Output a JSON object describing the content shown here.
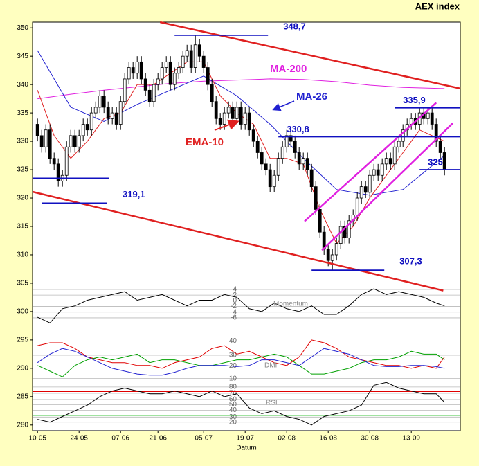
{
  "chart_data": {
    "type": "candlestick",
    "title": "AEX index",
    "xlabel": "Datum",
    "xlim": [
      -1.2,
      101.8
    ],
    "xticks": [
      {
        "value": 0,
        "label": "10-05"
      },
      {
        "value": 10,
        "label": "24-05"
      },
      {
        "value": 20,
        "label": "07-06"
      },
      {
        "value": 29,
        "label": "21-06"
      },
      {
        "value": 40,
        "label": "05-07"
      },
      {
        "value": 50,
        "label": "19-07"
      },
      {
        "value": 60,
        "label": "02-08"
      },
      {
        "value": 70,
        "label": "16-08"
      },
      {
        "value": 80,
        "label": "30-08"
      },
      {
        "value": 90,
        "label": "13-09"
      }
    ],
    "ylim": [
      279,
      351
    ],
    "yticks": [
      280,
      285,
      290,
      295,
      300,
      305,
      310,
      315,
      320,
      325,
      330,
      335,
      340,
      345,
      350
    ],
    "open": [
      333,
      331,
      329,
      332,
      327,
      326,
      323,
      324,
      329,
      331,
      329,
      331,
      333,
      332,
      335,
      336,
      338,
      336,
      334,
      335,
      333,
      337,
      341,
      343,
      342,
      344,
      341,
      339,
      337,
      340,
      341,
      343,
      344,
      340,
      342,
      343,
      345,
      346,
      343,
      347,
      345,
      343,
      340,
      337,
      334,
      333,
      335,
      336,
      334,
      336,
      333,
      335,
      332,
      330,
      328,
      326,
      325,
      322,
      324,
      327,
      329,
      331,
      330,
      328,
      326,
      327,
      325,
      322,
      318,
      314,
      311,
      309,
      310,
      312,
      315,
      313,
      316,
      317,
      320,
      322,
      321,
      324,
      325,
      324,
      326,
      327,
      326,
      329,
      330,
      332,
      333,
      334,
      333,
      335,
      334,
      335,
      333,
      330,
      328
    ],
    "high": [
      334,
      332,
      333,
      333,
      328,
      327,
      325,
      330,
      332,
      332,
      332,
      334,
      334,
      336,
      337,
      339,
      339,
      337,
      336,
      336,
      338,
      342,
      344,
      344,
      345,
      345,
      342,
      340,
      341,
      342,
      344,
      345,
      345,
      343,
      344,
      346,
      347,
      347,
      348.7,
      348,
      346,
      344,
      341,
      338,
      335,
      336,
      337,
      337,
      337,
      337,
      336,
      336,
      333,
      331,
      329,
      327,
      326,
      325,
      328,
      330,
      332,
      332,
      331,
      329,
      328,
      328,
      326,
      323,
      319,
      315,
      312,
      311,
      313,
      316,
      316,
      317,
      318,
      321,
      323,
      323,
      325,
      326,
      326,
      327,
      328,
      328,
      330,
      331,
      333,
      334,
      335,
      335,
      336,
      335.9,
      336,
      336,
      334,
      331,
      329
    ],
    "low": [
      330,
      328,
      328,
      326,
      325,
      322,
      322,
      323,
      328,
      328,
      328,
      330,
      331,
      331,
      334,
      335,
      335,
      333,
      333,
      332,
      332,
      336,
      340,
      341,
      341,
      340,
      338,
      336,
      336,
      339,
      340,
      342,
      339,
      339,
      341,
      342,
      344,
      342,
      342,
      344,
      342,
      339,
      336,
      333,
      332,
      332,
      334,
      333,
      333,
      332,
      332,
      331,
      329,
      327,
      325,
      324,
      321,
      321,
      323,
      326,
      328,
      329,
      327,
      325,
      325,
      324,
      321,
      317,
      313,
      310,
      308,
      307.3,
      309,
      311,
      312,
      312,
      315,
      316,
      319,
      320,
      320,
      323,
      323,
      323,
      325,
      325,
      325,
      328,
      329,
      331,
      332,
      332,
      332,
      333,
      333,
      332,
      329,
      327,
      324
    ],
    "close": [
      331,
      329,
      332,
      327,
      326,
      323,
      324,
      329,
      331,
      329,
      331,
      333,
      332,
      335,
      336,
      338,
      336,
      334,
      335,
      333,
      337,
      341,
      343,
      342,
      344,
      341,
      339,
      337,
      340,
      341,
      343,
      344,
      340,
      342,
      343,
      345,
      346,
      343,
      347,
      345,
      343,
      340,
      337,
      334,
      333,
      335,
      336,
      334,
      336,
      333,
      335,
      332,
      330,
      328,
      326,
      325,
      322,
      324,
      327,
      329,
      331,
      330,
      328,
      326,
      327,
      325,
      322,
      318,
      314,
      311,
      309,
      310,
      312,
      315,
      313,
      316,
      317,
      320,
      322,
      321,
      324,
      325,
      324,
      326,
      327,
      326,
      329,
      330,
      332,
      333,
      334,
      333,
      335,
      334,
      335,
      333,
      330,
      328,
      325
    ],
    "lines": [
      {
        "name": "MA-200",
        "color": "#e020e0",
        "x": [
          0,
          8,
          16,
          24,
          32,
          40,
          48,
          56,
          64,
          72,
          80,
          88,
          98
        ],
        "values": [
          337.5,
          338.3,
          339,
          339.6,
          340.2,
          340.6,
          340.8,
          341,
          340.9,
          340.5,
          339.9,
          339.5,
          339.3
        ]
      },
      {
        "name": "MA-26",
        "color": "#2020d0",
        "x": [
          0,
          8,
          16,
          24,
          32,
          40,
          48,
          56,
          64,
          72,
          80,
          88,
          98
        ],
        "values": [
          346,
          336,
          333.5,
          336.5,
          339,
          341.5,
          338,
          333,
          327,
          321.5,
          320.5,
          321.5,
          327.5
        ]
      },
      {
        "name": "EMA-10",
        "color": "#e02020",
        "x": [
          0,
          4,
          8,
          12,
          16,
          20,
          24,
          28,
          32,
          36,
          40,
          44,
          48,
          52,
          56,
          60,
          64,
          68,
          72,
          76,
          80,
          84,
          88,
          92,
          98
        ],
        "values": [
          339,
          331,
          327,
          330,
          334,
          335,
          340,
          340,
          342,
          344,
          344,
          338,
          335,
          333,
          327,
          327,
          326,
          318,
          312,
          315,
          320,
          324,
          328,
          332,
          330
        ]
      },
      {
        "color": "#000000",
        "x": [
          0,
          3,
          6,
          9,
          12,
          15,
          18,
          21,
          24,
          27,
          30,
          33,
          36,
          39,
          42,
          45,
          48,
          51,
          54,
          57,
          60,
          63,
          66,
          69,
          72,
          75,
          78,
          81,
          84,
          87,
          90,
          93,
          96,
          98
        ],
        "values": [
          299,
          298,
          300.5,
          301,
          302,
          302.5,
          303,
          303.5,
          302,
          302.5,
          303,
          302,
          301,
          302,
          302,
          303,
          302.5,
          300.5,
          300,
          301.5,
          300.5,
          300,
          301,
          299.5,
          299.5,
          301,
          303,
          304,
          303,
          303.5,
          303,
          302.5,
          301.5,
          301
        ]
      },
      {
        "color": "#e00000",
        "x": [
          0,
          3,
          6,
          9,
          12,
          15,
          18,
          21,
          24,
          27,
          30,
          33,
          36,
          39,
          42,
          45,
          48,
          51,
          54,
          57,
          60,
          63,
          66,
          69,
          72,
          75,
          78,
          81,
          84,
          87,
          90,
          93,
          96,
          98
        ],
        "values": [
          294,
          294.5,
          294.5,
          293.5,
          292,
          291.5,
          291,
          291,
          290.5,
          290.5,
          290,
          291,
          291.5,
          292,
          293.5,
          294,
          292.5,
          293,
          292,
          291,
          290.5,
          292,
          295,
          294.5,
          293.5,
          292,
          291.5,
          291,
          290.5,
          290.5,
          290,
          290.5,
          290,
          292
        ]
      },
      {
        "color": "#00a000",
        "x": [
          0,
          3,
          6,
          9,
          12,
          15,
          18,
          21,
          24,
          27,
          30,
          33,
          36,
          39,
          42,
          45,
          48,
          51,
          54,
          57,
          60,
          63,
          66,
          69,
          72,
          75,
          78,
          81,
          84,
          87,
          90,
          93,
          96,
          98
        ],
        "values": [
          290.5,
          289.5,
          288.5,
          290.5,
          291.5,
          292,
          291.5,
          292,
          292.5,
          291,
          291.5,
          291.5,
          291,
          290.5,
          290.5,
          291,
          291.5,
          291.5,
          292,
          292.5,
          292,
          290.5,
          289,
          289,
          289.5,
          290,
          291,
          291.5,
          291.5,
          292,
          293,
          292.5,
          292.5,
          291.5
        ]
      },
      {
        "color": "#2020d0",
        "x": [
          0,
          3,
          6,
          9,
          12,
          15,
          18,
          21,
          24,
          27,
          30,
          33,
          36,
          39,
          42,
          45,
          48,
          51,
          54,
          57,
          60,
          63,
          66,
          69,
          72,
          75,
          78,
          81,
          84,
          87,
          90,
          93,
          96,
          98
        ],
        "values": [
          291,
          292.5,
          293.5,
          293,
          292,
          291,
          290,
          289.5,
          289,
          288.8,
          288.8,
          289.3,
          290,
          290.5,
          290.5,
          290.5,
          290.3,
          290.5,
          291.5,
          291.5,
          291,
          290.5,
          292,
          293.5,
          293,
          292.5,
          291.5,
          290.5,
          290.3,
          290.3,
          290.5,
          290.5,
          290.3,
          290
        ]
      },
      {
        "color": "#000000",
        "x": [
          0,
          3,
          6,
          9,
          12,
          15,
          18,
          21,
          24,
          27,
          30,
          33,
          36,
          39,
          42,
          45,
          48,
          51,
          54,
          57,
          60,
          63,
          66,
          69,
          72,
          75,
          78,
          81,
          84,
          87,
          90,
          93,
          96,
          98
        ],
        "values": [
          281,
          280.5,
          281.5,
          282.5,
          283.5,
          285,
          286,
          286.5,
          286,
          285.5,
          285.5,
          286,
          285.5,
          285,
          286,
          285,
          285.5,
          283,
          282,
          282.5,
          281.5,
          281,
          280,
          281.5,
          282,
          282.5,
          283.5,
          287,
          287.5,
          286.5,
          286,
          285.5,
          285.5,
          284
        ]
      }
    ],
    "trendlines": [
      {
        "color": "#e02020",
        "x": [
          29.5,
          101.8
        ],
        "values": [
          351,
          339.3
        ]
      },
      {
        "color": "#e02020",
        "x": [
          -1.2,
          97.7
        ],
        "values": [
          321.1,
          303.7
        ]
      },
      {
        "color": "#e020e0",
        "x": [
          64.3,
          96
        ],
        "values": [
          315.9,
          336.8
        ]
      },
      {
        "color": "#e020e0",
        "x": [
          68.5,
          100
        ],
        "values": [
          310.8,
          333.2
        ]
      }
    ],
    "levels": [
      {
        "value": 348.7,
        "label": "348,7",
        "from": 33,
        "to": 55.5
      },
      {
        "value": 335.9,
        "label": "335,9",
        "from": 86,
        "to": 101.8
      },
      {
        "value": 330.8,
        "label": "330,8",
        "from": 58,
        "to": 101.8
      },
      {
        "value": 325,
        "label": "325",
        "from": 92,
        "to": 101.8
      },
      {
        "value": 323.5,
        "from": -1.2,
        "to": 17.3
      },
      {
        "value": 319.1,
        "label": "319,1",
        "from": 1,
        "to": 16.8
      },
      {
        "value": 307.3,
        "label": "307,3",
        "from": 66,
        "to": 83.5
      }
    ],
    "panel_ticks": [
      {
        "value": 303.9,
        "label": "4"
      },
      {
        "value": 302.9,
        "label": "2"
      },
      {
        "value": 301.9,
        "label": "0"
      },
      {
        "value": 300.9,
        "label": "-2"
      },
      {
        "value": 299.9,
        "label": "-4"
      },
      {
        "value": 298.9,
        "label": "-6"
      },
      {
        "value": 294.8,
        "label": "40"
      },
      {
        "value": 292.3,
        "label": "30"
      },
      {
        "value": 290.4,
        "label": "20"
      },
      {
        "value": 288.2,
        "label": "10"
      },
      {
        "value": 286.7,
        "label": "80"
      },
      {
        "value": 285.6,
        "label": "70"
      },
      {
        "value": 284.5,
        "label": "60"
      },
      {
        "value": 283.6,
        "label": "50"
      },
      {
        "value": 282.6,
        "label": "40"
      },
      {
        "value": 281.4,
        "label": "30"
      },
      {
        "value": 280.5,
        "label": "20"
      }
    ],
    "bands": [
      {
        "value": 285.9,
        "color": "#e00000"
      },
      {
        "value": 281.7,
        "color": "#00b000"
      }
    ],
    "annotations": [
      "MA-200",
      "MA-26",
      "EMA-10",
      "Momentum",
      "DMI",
      "RSI"
    ]
  }
}
